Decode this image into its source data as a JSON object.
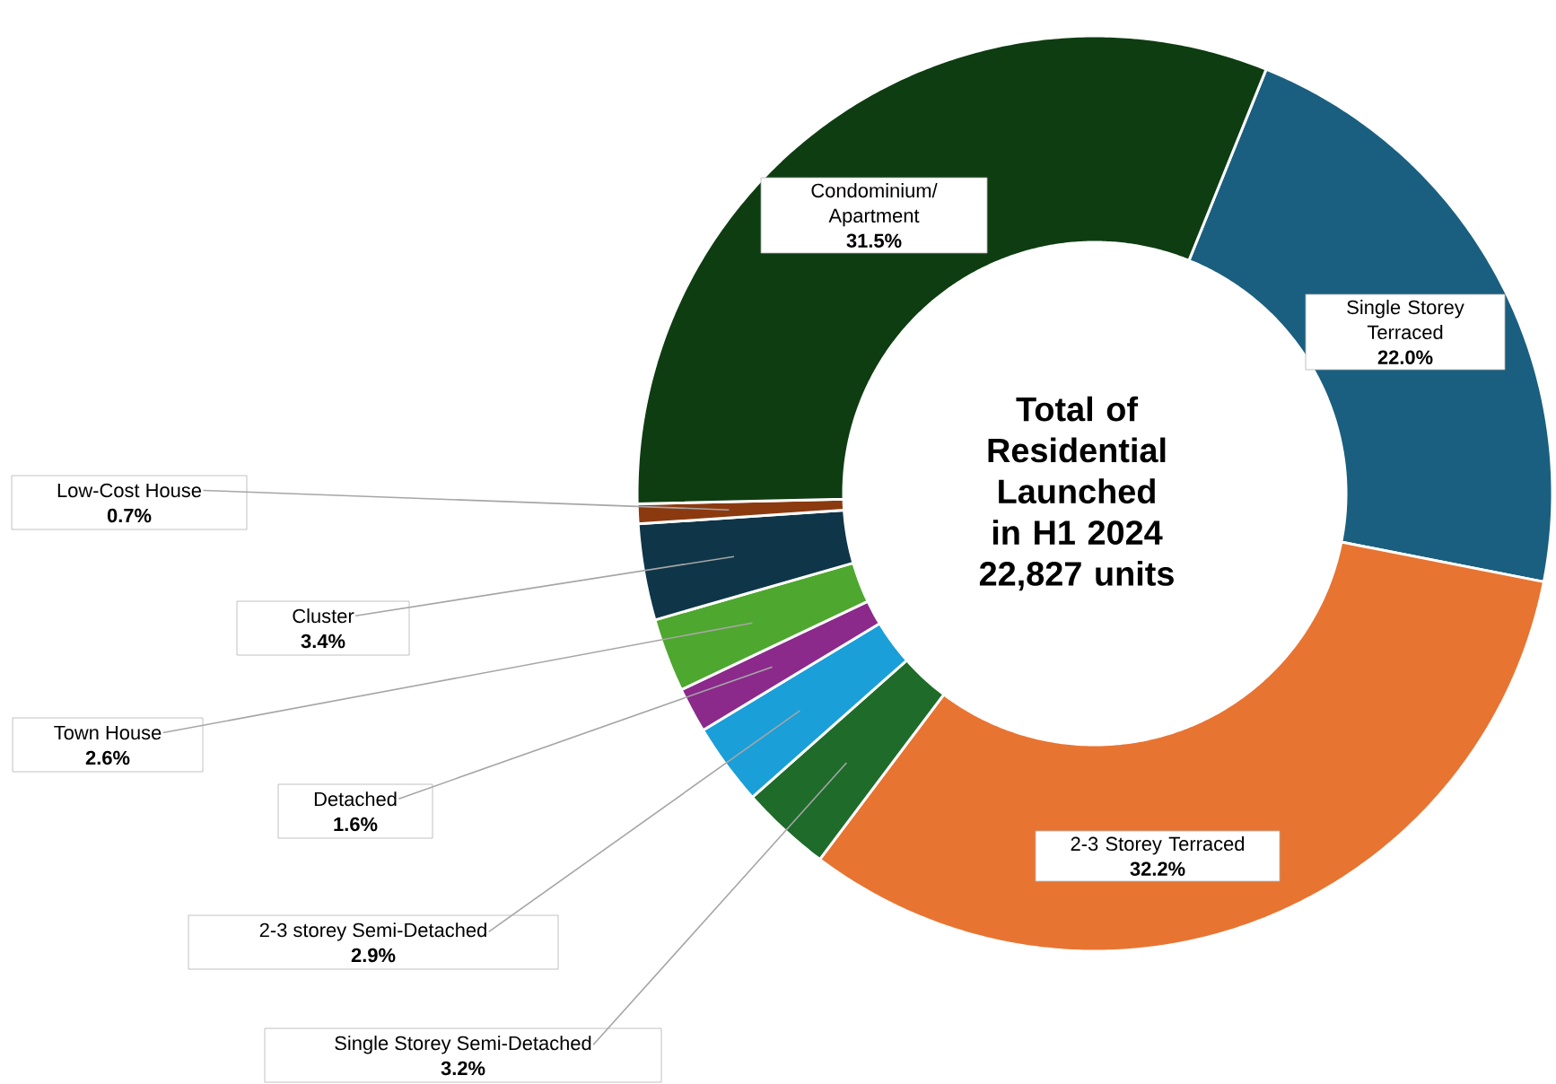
{
  "chart_data": {
    "type": "donut",
    "title": "Total of Residential Launched in H1 2024",
    "subtitle": "22,827 units",
    "categories": [
      "Single Storey Terraced",
      "2-3 Storey Terraced",
      "Single Storey Semi-Detached",
      "2-3 storey Semi-Detached",
      "Detached",
      "Town House",
      "Cluster",
      "Low-Cost House",
      "Condominium/ Apartment"
    ],
    "values": [
      22.0,
      32.2,
      3.2,
      2.9,
      1.6,
      2.6,
      3.4,
      0.7,
      31.5
    ],
    "value_labels": [
      "22.0%",
      "32.2%",
      "3.2%",
      "2.9%",
      "1.6%",
      "2.6%",
      "3.4%",
      "0.7%",
      "31.5%"
    ],
    "colors": [
      "#1a5f7f",
      "#e87432",
      "#1e6b2a",
      "#1a9fd8",
      "#8b2a8b",
      "#4ea72e",
      "#0f3548",
      "#8b3a10",
      "#0e3d12"
    ]
  }
}
